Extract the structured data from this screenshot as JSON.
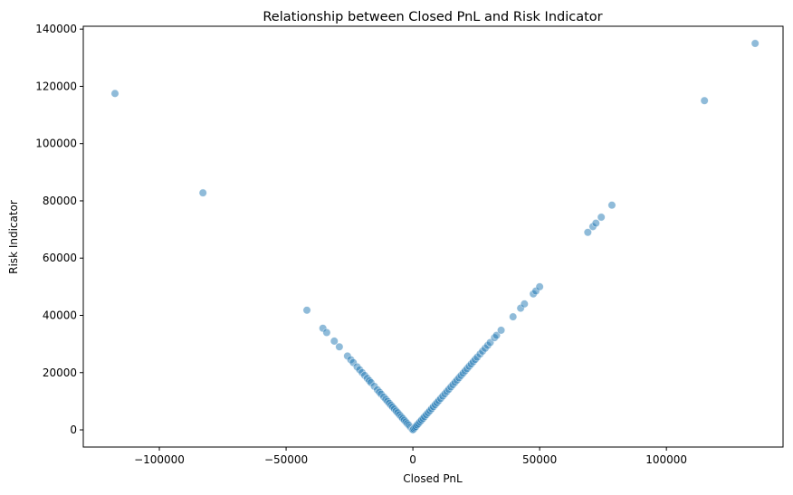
{
  "chart_data": {
    "type": "scatter",
    "title": "Relationship between Closed PnL and Risk Indicator",
    "xlabel": "Closed PnL",
    "ylabel": "Risk Indicator",
    "xlim": [
      -130000,
      146000
    ],
    "ylim": [
      -6000,
      141000
    ],
    "xticks": [
      -100000,
      -50000,
      0,
      50000,
      100000
    ],
    "xtick_labels": [
      "−100000",
      "−50000",
      "0",
      "50000",
      "100000"
    ],
    "yticks": [
      0,
      20000,
      40000,
      60000,
      80000,
      100000,
      120000,
      140000
    ],
    "ytick_labels": [
      "0",
      "20000",
      "40000",
      "60000",
      "80000",
      "100000",
      "120000",
      "140000"
    ],
    "grid": false,
    "legend": "none",
    "marker_color": "#1f77b4",
    "marker_alpha": 0.5,
    "series": [
      {
        "points": [
          [
            -117500,
            117500
          ],
          [
            -82800,
            82800
          ],
          [
            -41800,
            41800
          ],
          [
            -35500,
            35500
          ],
          [
            -34000,
            34000
          ],
          [
            -31000,
            31000
          ],
          [
            -29000,
            29000
          ],
          [
            -25800,
            25800
          ],
          [
            -24500,
            24500
          ],
          [
            -23500,
            23500
          ],
          [
            -22000,
            22000
          ],
          [
            -21000,
            21000
          ],
          [
            -20000,
            20000
          ],
          [
            -19000,
            19000
          ],
          [
            -18000,
            18000
          ],
          [
            -17200,
            17200
          ],
          [
            -16500,
            16500
          ],
          [
            -15200,
            15200
          ],
          [
            -14000,
            14000
          ],
          [
            -13200,
            13200
          ],
          [
            -12500,
            12500
          ],
          [
            -11500,
            11500
          ],
          [
            -10700,
            10700
          ],
          [
            -10000,
            10000
          ],
          [
            -9300,
            9300
          ],
          [
            -8600,
            8600
          ],
          [
            -8000,
            8000
          ],
          [
            -7300,
            7300
          ],
          [
            -6600,
            6600
          ],
          [
            -6000,
            6000
          ],
          [
            -5300,
            5300
          ],
          [
            -4600,
            4600
          ],
          [
            -4000,
            4000
          ],
          [
            -3400,
            3400
          ],
          [
            -2800,
            2800
          ],
          [
            -2200,
            2200
          ],
          [
            -1700,
            1700
          ],
          [
            -1200,
            1200
          ],
          [
            -800,
            800
          ],
          [
            -400,
            400
          ],
          [
            -150,
            150
          ],
          [
            0,
            0
          ],
          [
            150,
            150
          ],
          [
            400,
            400
          ],
          [
            800,
            800
          ],
          [
            1200,
            1200
          ],
          [
            1700,
            1700
          ],
          [
            2200,
            2200
          ],
          [
            2800,
            2800
          ],
          [
            3400,
            3400
          ],
          [
            4000,
            4000
          ],
          [
            4600,
            4600
          ],
          [
            5300,
            5300
          ],
          [
            6000,
            6000
          ],
          [
            6700,
            6700
          ],
          [
            7400,
            7400
          ],
          [
            8100,
            8100
          ],
          [
            8800,
            8800
          ],
          [
            9500,
            9500
          ],
          [
            10200,
            10200
          ],
          [
            11000,
            11000
          ],
          [
            11800,
            11800
          ],
          [
            12600,
            12600
          ],
          [
            13400,
            13400
          ],
          [
            14200,
            14200
          ],
          [
            15000,
            15000
          ],
          [
            15800,
            15800
          ],
          [
            16600,
            16600
          ],
          [
            17400,
            17400
          ],
          [
            18200,
            18200
          ],
          [
            19000,
            19000
          ],
          [
            19800,
            19800
          ],
          [
            20600,
            20600
          ],
          [
            21400,
            21400
          ],
          [
            22200,
            22200
          ],
          [
            23000,
            23000
          ],
          [
            23800,
            23800
          ],
          [
            24600,
            24600
          ],
          [
            25400,
            25400
          ],
          [
            26500,
            26500
          ],
          [
            27500,
            27500
          ],
          [
            28500,
            28500
          ],
          [
            29500,
            29500
          ],
          [
            30500,
            30500
          ],
          [
            32200,
            32200
          ],
          [
            33000,
            33000
          ],
          [
            34800,
            34800
          ],
          [
            39500,
            39500
          ],
          [
            42500,
            42500
          ],
          [
            44000,
            44000
          ],
          [
            47500,
            47500
          ],
          [
            48500,
            48500
          ],
          [
            50000,
            50000
          ],
          [
            69000,
            69000
          ],
          [
            71000,
            71000
          ],
          [
            72200,
            72200
          ],
          [
            74300,
            74300
          ],
          [
            78500,
            78500
          ],
          [
            115000,
            115000
          ],
          [
            135000,
            135000
          ]
        ]
      }
    ]
  }
}
